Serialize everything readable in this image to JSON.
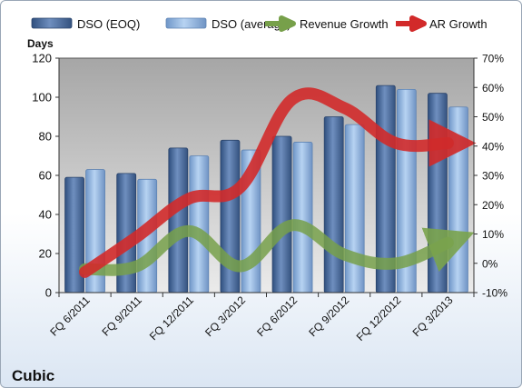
{
  "chart_data": {
    "type": "bar",
    "title": "Cubic",
    "ylabel": "Days",
    "categories": [
      "FQ 6/2011",
      "FQ 9/2011",
      "FQ 12/2011",
      "FQ 3/2012",
      "FQ 6/2012",
      "FQ 9/2012",
      "FQ 12/2012",
      "FQ 3/2013"
    ],
    "ylim": [
      0,
      120
    ],
    "yticks": [
      0,
      20,
      40,
      60,
      80,
      100,
      120
    ],
    "y2lim": [
      -10,
      70
    ],
    "y2ticks": [
      "-10%",
      "0%",
      "10%",
      "20%",
      "30%",
      "40%",
      "50%",
      "60%",
      "70%"
    ],
    "grid": false,
    "legend_position": "top",
    "series": [
      {
        "name": "DSO (EOQ)",
        "kind": "bar",
        "axis": "left",
        "color": "#4f6f9f",
        "values": [
          59,
          61,
          74,
          78,
          80,
          90,
          106,
          102
        ]
      },
      {
        "name": "DSO (average)",
        "kind": "bar",
        "axis": "left",
        "color": "#90b6e3",
        "values": [
          63,
          58,
          70,
          73,
          77,
          86,
          104,
          95
        ]
      },
      {
        "name": "Revenue Growth",
        "kind": "arrow-line",
        "axis": "right",
        "color": "#77a04a",
        "values": [
          -2,
          -1,
          11,
          -1,
          13,
          3,
          0,
          7
        ]
      },
      {
        "name": "AR Growth",
        "kind": "arrow-line",
        "axis": "right",
        "color": "#d22a2a",
        "values": [
          -3,
          9,
          22,
          26,
          56,
          53,
          41,
          41
        ]
      }
    ]
  }
}
